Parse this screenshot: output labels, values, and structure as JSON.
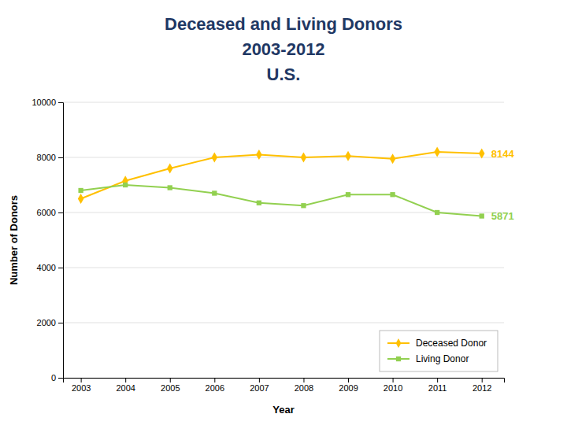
{
  "chart_data": {
    "type": "line",
    "title": [
      "Deceased and Living Donors",
      "2003-2012",
      "U.S."
    ],
    "xlabel": "Year",
    "ylabel": "Number of Donors",
    "x": [
      2003,
      2004,
      2005,
      2006,
      2007,
      2008,
      2009,
      2010,
      2011,
      2012
    ],
    "series": [
      {
        "name": "Deceased Donor",
        "color": "#FFC000",
        "marker": "diamond",
        "values": [
          6500,
          7150,
          7600,
          8000,
          8100,
          8000,
          8050,
          7950,
          8200,
          8144
        ]
      },
      {
        "name": "Living Donor",
        "color": "#92D050",
        "marker": "square",
        "values": [
          6800,
          7000,
          6900,
          6700,
          6350,
          6250,
          6650,
          6650,
          6000,
          5871
        ]
      }
    ],
    "xlim": [
      2002.6,
      2012.5
    ],
    "xticks": [
      2003,
      2004,
      2005,
      2006,
      2007,
      2008,
      2009,
      2010,
      2011,
      2012
    ],
    "ylim": [
      0,
      10000
    ],
    "yticks": [
      0,
      2000,
      4000,
      6000,
      8000,
      10000
    ],
    "grid": true,
    "legend": "lower right",
    "annotations": [
      {
        "text": "8144",
        "x": 2012,
        "y": 8144
      },
      {
        "text": "5871",
        "x": 2012,
        "y": 5871
      }
    ]
  }
}
